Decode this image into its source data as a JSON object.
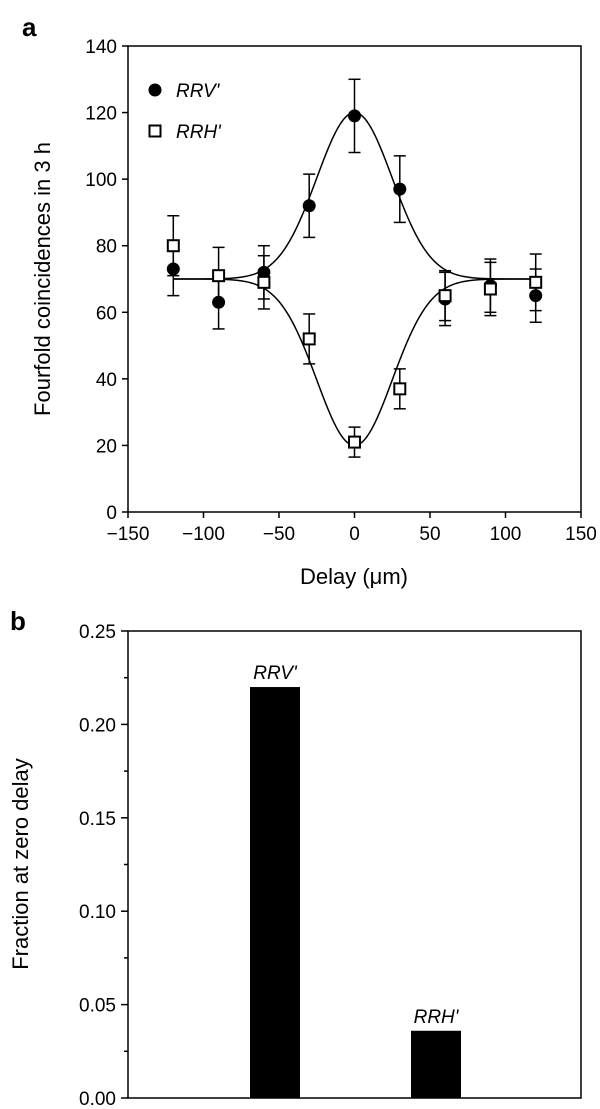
{
  "chart_data": [
    {
      "panel_label": "a",
      "type": "scatter",
      "title": "",
      "xlabel": "Delay (μm)",
      "ylabel": "Fourfold coincidences in 3 h",
      "xlim": [
        -150,
        150
      ],
      "ylim": [
        0,
        140
      ],
      "xticks": [
        -150,
        -100,
        -50,
        0,
        50,
        100,
        150
      ],
      "xtick_labels": [
        "−150",
        "−100",
        "−50",
        "0",
        "50",
        "100",
        "150"
      ],
      "yticks": [
        0,
        20,
        40,
        60,
        80,
        100,
        120,
        140
      ],
      "ytick_labels": [
        "0",
        "20",
        "40",
        "60",
        "80",
        "100",
        "120",
        "140"
      ],
      "legend_position": "top-left",
      "series": [
        {
          "name": "RRV'",
          "marker": "filled-circle",
          "x": [
            -120,
            -90,
            -60,
            -30,
            0,
            30,
            60,
            90,
            120
          ],
          "y": [
            73,
            63,
            72,
            92,
            119,
            97,
            64,
            68,
            65
          ],
          "error": [
            8,
            8,
            8,
            9.5,
            11,
            10,
            8,
            8,
            8
          ],
          "fit": {
            "baseline": 70,
            "amplitude": 50,
            "sigma": 25
          }
        },
        {
          "name": "RRH'",
          "marker": "open-square",
          "x": [
            -120,
            -90,
            -60,
            -30,
            0,
            30,
            60,
            90,
            120
          ],
          "y": [
            80,
            71,
            69,
            52,
            21,
            37,
            65,
            67,
            69
          ],
          "error": [
            9,
            8.5,
            8,
            7.5,
            4.5,
            6,
            7.5,
            8,
            8.5
          ],
          "fit": {
            "baseline": 70,
            "amplitude": -50,
            "sigma": 25
          }
        }
      ]
    },
    {
      "panel_label": "b",
      "type": "bar",
      "title": "",
      "xlabel": "",
      "ylabel": "Fraction at zero delay",
      "ylim": [
        0,
        0.25
      ],
      "yticks": [
        0,
        0.05,
        0.1,
        0.15,
        0.2,
        0.25
      ],
      "ytick_labels": [
        "0.00",
        "0.05",
        "0.10",
        "0.15",
        "0.20",
        "0.25"
      ],
      "categories": [
        "RRV'",
        "RRH'"
      ],
      "values": [
        0.22,
        0.036
      ]
    }
  ]
}
